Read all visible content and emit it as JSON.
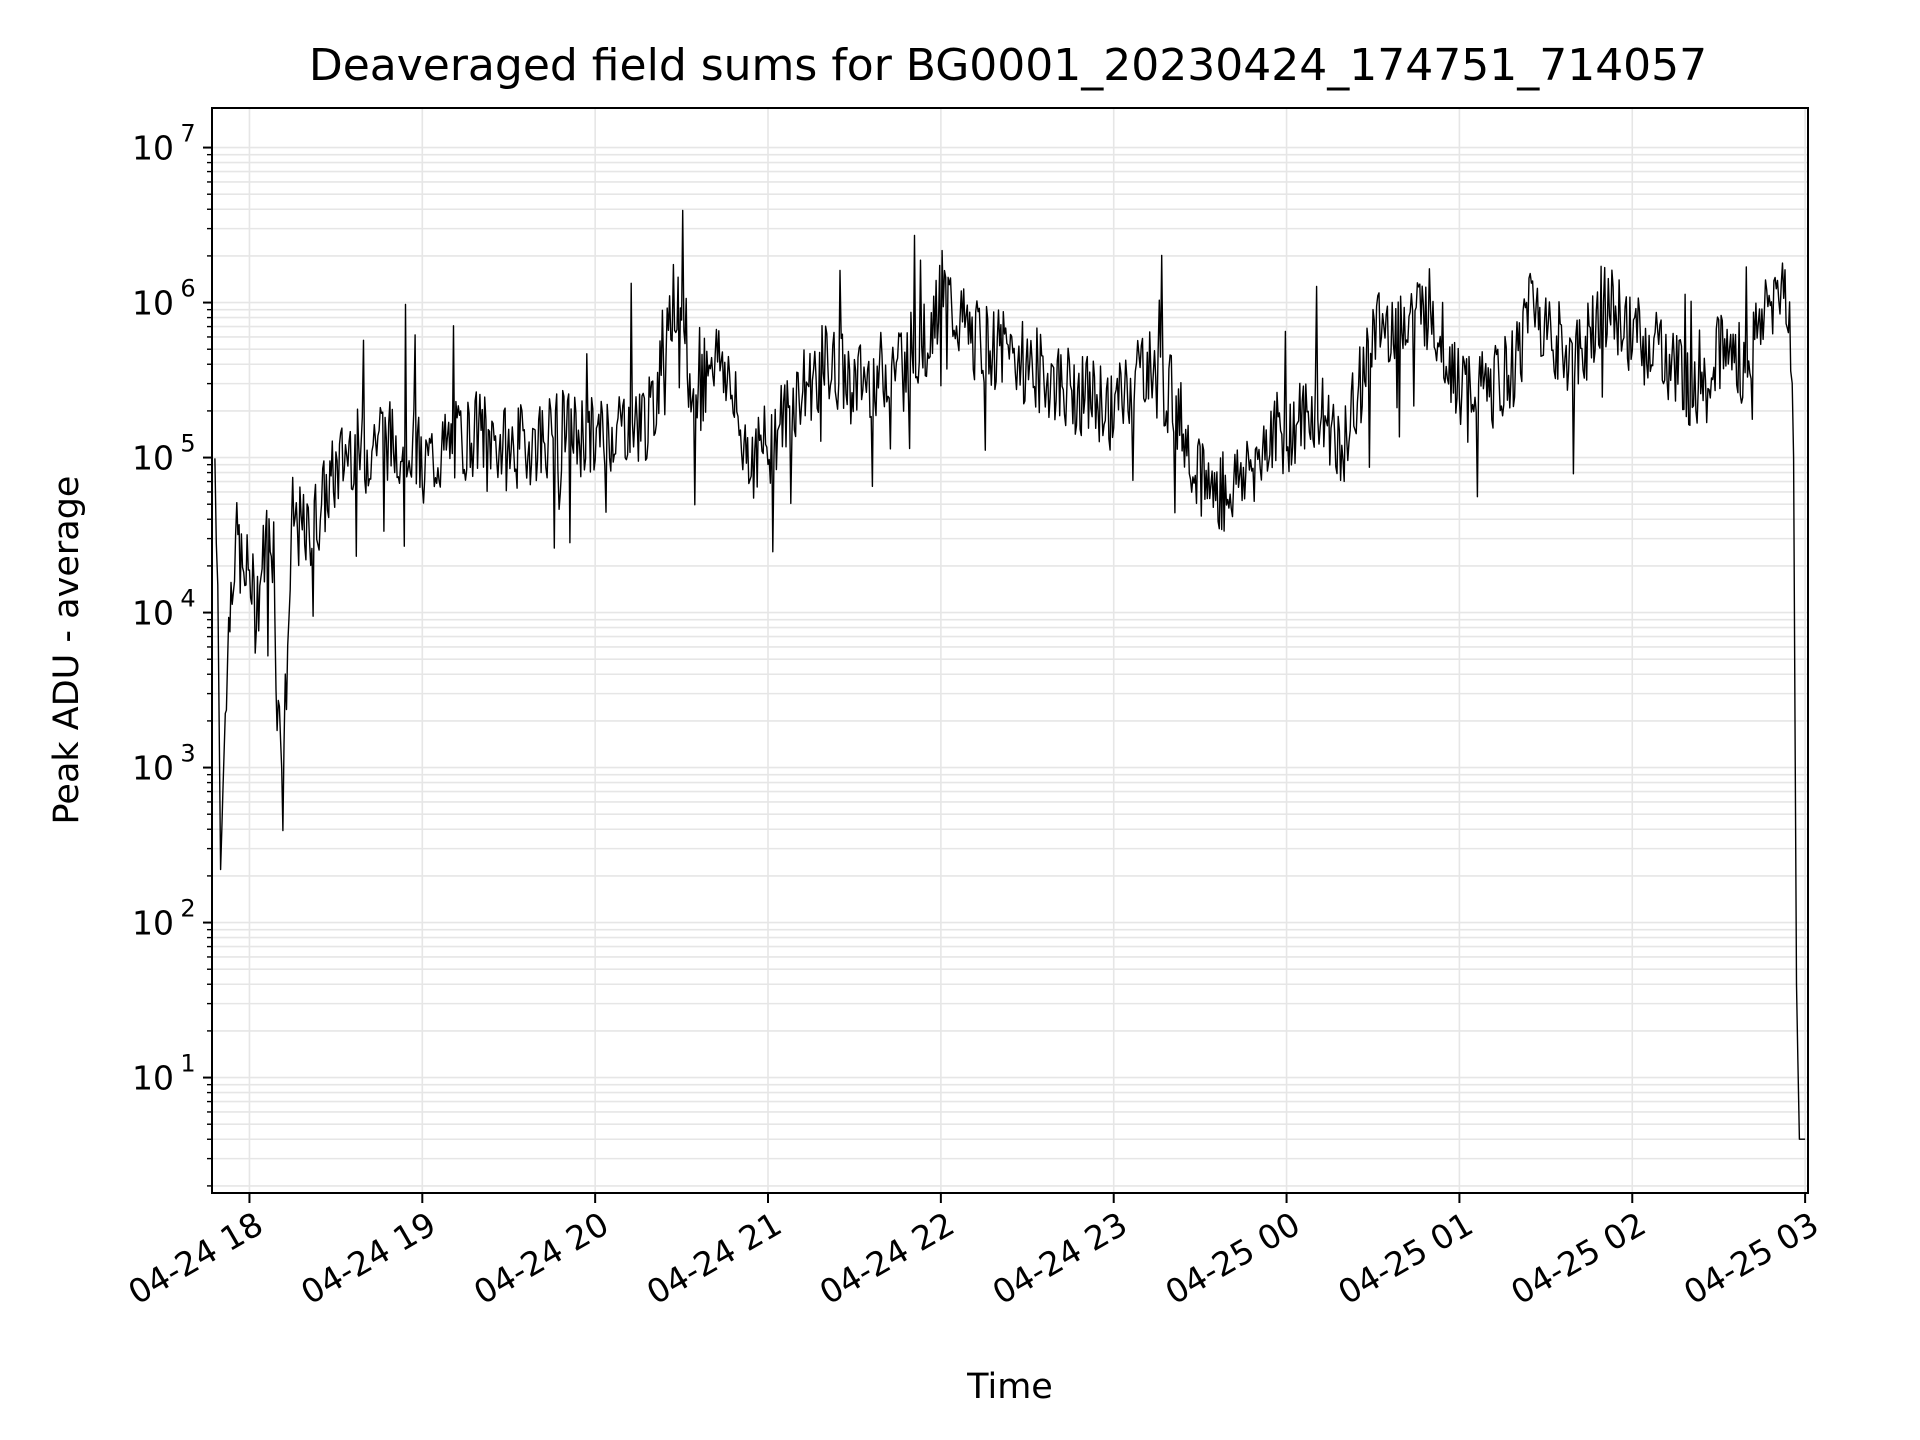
{
  "chart_data": {
    "type": "line",
    "title": "Deaveraged field sums for BG0001_20230424_174751_714057",
    "xlabel": "Time",
    "ylabel": "Peak ADU - average",
    "yscale": "log",
    "ylim": [
      1.8,
      18000000
    ],
    "xlim": [
      "2023-04-24 17:47",
      "2023-04-25 03:01"
    ],
    "grid": true,
    "legend": "none",
    "line_color": "#000000",
    "grid_color": "#e6e6e6",
    "x_ticks": [
      {
        "label": "04-24 18",
        "value": "2023-04-24 18:00"
      },
      {
        "label": "04-24 19",
        "value": "2023-04-24 19:00"
      },
      {
        "label": "04-24 20",
        "value": "2023-04-24 20:00"
      },
      {
        "label": "04-24 21",
        "value": "2023-04-24 21:00"
      },
      {
        "label": "04-24 22",
        "value": "2023-04-24 22:00"
      },
      {
        "label": "04-24 23",
        "value": "2023-04-24 23:00"
      },
      {
        "label": "04-25 00",
        "value": "2023-04-25 00:00"
      },
      {
        "label": "04-25 01",
        "value": "2023-04-25 01:00"
      },
      {
        "label": "04-25 02",
        "value": "2023-04-25 02:00"
      },
      {
        "label": "04-25 03",
        "value": "2023-04-25 03:00"
      }
    ],
    "y_ticks": [
      {
        "base": "10",
        "exp": "1",
        "value": 10
      },
      {
        "base": "10",
        "exp": "2",
        "value": 100
      },
      {
        "base": "10",
        "exp": "3",
        "value": 1000
      },
      {
        "base": "10",
        "exp": "4",
        "value": 10000
      },
      {
        "base": "10",
        "exp": "5",
        "value": 100000
      },
      {
        "base": "10",
        "exp": "6",
        "value": 1000000
      },
      {
        "base": "10",
        "exp": "7",
        "value": 10000000
      }
    ],
    "series": [
      {
        "x": [
          "2023-04-24 17:48",
          "2023-04-24 17:49",
          "2023-04-24 17:50",
          "2023-04-24 17:52",
          "2023-04-24 17:54",
          "2023-04-24 17:56",
          "2023-04-24 17:58",
          "2023-04-24 18:00",
          "2023-04-24 18:02",
          "2023-04-24 18:04",
          "2023-04-24 18:06",
          "2023-04-24 18:08",
          "2023-04-24 18:10",
          "2023-04-24 18:12",
          "2023-04-24 18:15",
          "2023-04-24 18:20",
          "2023-04-24 18:25",
          "2023-04-24 18:30",
          "2023-04-24 18:35",
          "2023-04-24 18:40",
          "2023-04-24 18:45",
          "2023-04-24 18:50",
          "2023-04-24 18:55",
          "2023-04-24 19:00",
          "2023-04-24 19:10",
          "2023-04-24 19:20",
          "2023-04-24 19:30",
          "2023-04-24 19:40",
          "2023-04-24 19:50",
          "2023-04-24 20:00",
          "2023-04-24 20:10",
          "2023-04-24 20:20",
          "2023-04-24 20:25",
          "2023-04-24 20:28",
          "2023-04-24 20:32",
          "2023-04-24 20:35",
          "2023-04-24 20:40",
          "2023-04-24 20:45",
          "2023-04-24 20:50",
          "2023-04-24 20:55",
          "2023-04-24 21:00",
          "2023-04-24 21:10",
          "2023-04-24 21:20",
          "2023-04-24 21:30",
          "2023-04-24 21:40",
          "2023-04-24 21:50",
          "2023-04-24 21:55",
          "2023-04-24 22:00",
          "2023-04-24 22:10",
          "2023-04-24 22:20",
          "2023-04-24 22:30",
          "2023-04-24 22:40",
          "2023-04-24 22:50",
          "2023-04-24 23:00",
          "2023-04-24 23:10",
          "2023-04-24 23:20",
          "2023-04-24 23:30",
          "2023-04-24 23:35",
          "2023-04-24 23:40",
          "2023-04-24 23:45",
          "2023-04-24 23:50",
          "2023-04-24 23:55",
          "2023-04-25 00:00",
          "2023-04-25 00:10",
          "2023-04-25 00:20",
          "2023-04-25 00:30",
          "2023-04-25 00:35",
          "2023-04-25 00:40",
          "2023-04-25 00:50",
          "2023-04-25 01:00",
          "2023-04-25 01:10",
          "2023-04-25 01:20",
          "2023-04-25 01:25",
          "2023-04-25 01:30",
          "2023-04-25 01:40",
          "2023-04-25 01:50",
          "2023-04-25 02:00",
          "2023-04-25 02:10",
          "2023-04-25 02:20",
          "2023-04-25 02:30",
          "2023-04-25 02:40",
          "2023-04-25 02:45",
          "2023-04-25 02:50",
          "2023-04-25 02:53",
          "2023-04-25 02:55",
          "2023-04-25 02:56",
          "2023-04-25 02:57",
          "2023-04-25 02:58",
          "2023-04-25 03:00"
        ],
        "y": [
          100000,
          15000,
          220,
          4000,
          20000,
          30000,
          15000,
          20000,
          10000,
          18000,
          30000,
          22000,
          2000,
          1500,
          40000,
          30000,
          50000,
          80000,
          120000,
          100000,
          150000,
          120000,
          140000,
          90000,
          120000,
          150000,
          110000,
          130000,
          150000,
          130000,
          170000,
          180000,
          900000,
          1000000,
          300000,
          200000,
          500000,
          400000,
          150000,
          100000,
          120000,
          250000,
          400000,
          300000,
          350000,
          500000,
          600000,
          1200000,
          600000,
          500000,
          400000,
          300000,
          250000,
          200000,
          400000,
          250000,
          80000,
          60000,
          60000,
          80000,
          100000,
          150000,
          140000,
          200000,
          120000,
          600000,
          700000,
          800000,
          900000,
          300000,
          250000,
          400000,
          1200000,
          700000,
          400000,
          1000000,
          600000,
          500000,
          300000,
          500000,
          400000,
          800000,
          1200000,
          1300000,
          600000,
          100000,
          40,
          4,
          4
        ]
      }
    ]
  }
}
